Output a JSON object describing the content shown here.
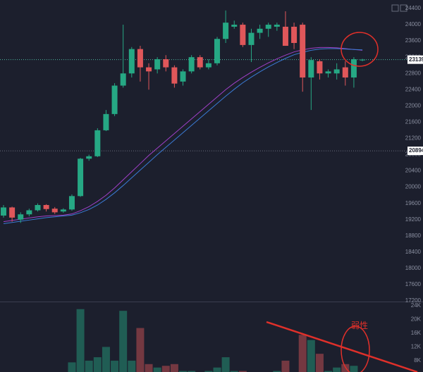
{
  "chart_data": [
    {
      "type": "candlestick",
      "up_color": "#26a884",
      "down_color": "#e0575a",
      "open": [
        19300,
        19500,
        19200,
        19330,
        19430,
        19560,
        19470,
        19400,
        19450,
        19780,
        20700,
        20760,
        21400,
        21800,
        22500,
        22800,
        23400,
        22950,
        22900,
        23150,
        22950,
        22600,
        22850,
        23200,
        22950,
        23050,
        23650,
        23950,
        24000,
        23500,
        23800,
        23900,
        23950,
        23950,
        23950,
        24000,
        22700,
        23100,
        22800,
        22800,
        22950,
        22700,
        23130
      ],
      "high": [
        19560,
        19520,
        19380,
        19470,
        19600,
        19580,
        19510,
        19480,
        19820,
        20720,
        20800,
        21450,
        21900,
        22560,
        24000,
        23450,
        23480,
        23050,
        23200,
        23250,
        23000,
        22900,
        23250,
        23250,
        23150,
        23700,
        24350,
        24100,
        24050,
        23900,
        24000,
        24050,
        24050,
        24330,
        24050,
        24050,
        23200,
        23150,
        22900,
        23050,
        23100,
        23200,
        23160
      ],
      "low": [
        19250,
        19150,
        19120,
        19280,
        19400,
        19400,
        19340,
        19370,
        19420,
        19760,
        20650,
        20740,
        21380,
        21750,
        22450,
        22700,
        22600,
        22400,
        22800,
        22850,
        22450,
        22500,
        22800,
        22900,
        22900,
        23000,
        23550,
        23900,
        23450,
        23080,
        23650,
        23700,
        23850,
        23480,
        23400,
        22350,
        21900,
        22650,
        22700,
        22650,
        22500,
        22450,
        23100
      ],
      "close": [
        19500,
        19250,
        19330,
        19430,
        19560,
        19460,
        19380,
        19450,
        19780,
        20700,
        20760,
        21400,
        21800,
        22500,
        22800,
        23400,
        22950,
        22850,
        23150,
        22950,
        22550,
        22850,
        23200,
        22950,
        23050,
        23650,
        24050,
        24000,
        23500,
        23800,
        23900,
        24000,
        24000,
        23480,
        23550,
        22700,
        23130,
        22800,
        22850,
        22900,
        22700,
        23150,
        23139
      ],
      "lines": [
        {
          "color": "#a040c8",
          "values": [
            19150,
            19180,
            19210,
            19240,
            19270,
            19290,
            19300,
            19310,
            19340,
            19420,
            19520,
            19650,
            19800,
            19980,
            20180,
            20380,
            20580,
            20780,
            20960,
            21140,
            21320,
            21500,
            21680,
            21860,
            22040,
            22220,
            22400,
            22560,
            22700,
            22830,
            22950,
            23060,
            23160,
            23250,
            23330,
            23380,
            23420,
            23440,
            23440,
            23430,
            23410,
            23390,
            23370
          ]
        },
        {
          "color": "#3a7bd5",
          "values": [
            19100,
            19130,
            19160,
            19190,
            19220,
            19250,
            19270,
            19290,
            19310,
            19370,
            19450,
            19560,
            19700,
            19860,
            20040,
            20230,
            20420,
            20610,
            20800,
            20980,
            21160,
            21340,
            21520,
            21700,
            21880,
            22060,
            22240,
            22410,
            22570,
            22710,
            22840,
            22960,
            23070,
            23170,
            23260,
            23320,
            23370,
            23400,
            23410,
            23410,
            23400,
            23390,
            23380
          ]
        }
      ],
      "price_lines": [
        {
          "value": 23139,
          "label": "23139."
        },
        {
          "value": 20894,
          "label": "20894."
        }
      ],
      "ylim": [
        17183,
        24608
      ],
      "yticks": [
        24400,
        24000,
        23600,
        23200,
        22800,
        22400,
        22000,
        21600,
        21200,
        20800,
        20400,
        20000,
        19600,
        19200,
        18800,
        18400,
        18000,
        17600,
        17200
      ]
    },
    {
      "type": "bar",
      "values": [
        4000,
        4000,
        4000,
        4000,
        4000,
        4000,
        4000,
        4000,
        7500,
        23000,
        8000,
        9000,
        12000,
        8000,
        22500,
        8000,
        17500,
        7000,
        6000,
        6500,
        7000,
        5000,
        5000,
        4000,
        5000,
        6000,
        9000,
        5000,
        5000,
        4000,
        4000,
        4000,
        5000,
        8000,
        4000,
        15500,
        14000,
        10000,
        5000,
        6000,
        7000,
        6500,
        4000
      ],
      "annotation": "弱性",
      "ylim": [
        4700,
        25200
      ],
      "yticks": [
        {
          "value": 24000,
          "label": "24K"
        },
        {
          "value": 20000,
          "label": "20K"
        },
        {
          "value": 16000,
          "label": "16K"
        },
        {
          "value": 12000,
          "label": "12K"
        },
        {
          "value": 8000,
          "label": "8K"
        }
      ]
    }
  ]
}
